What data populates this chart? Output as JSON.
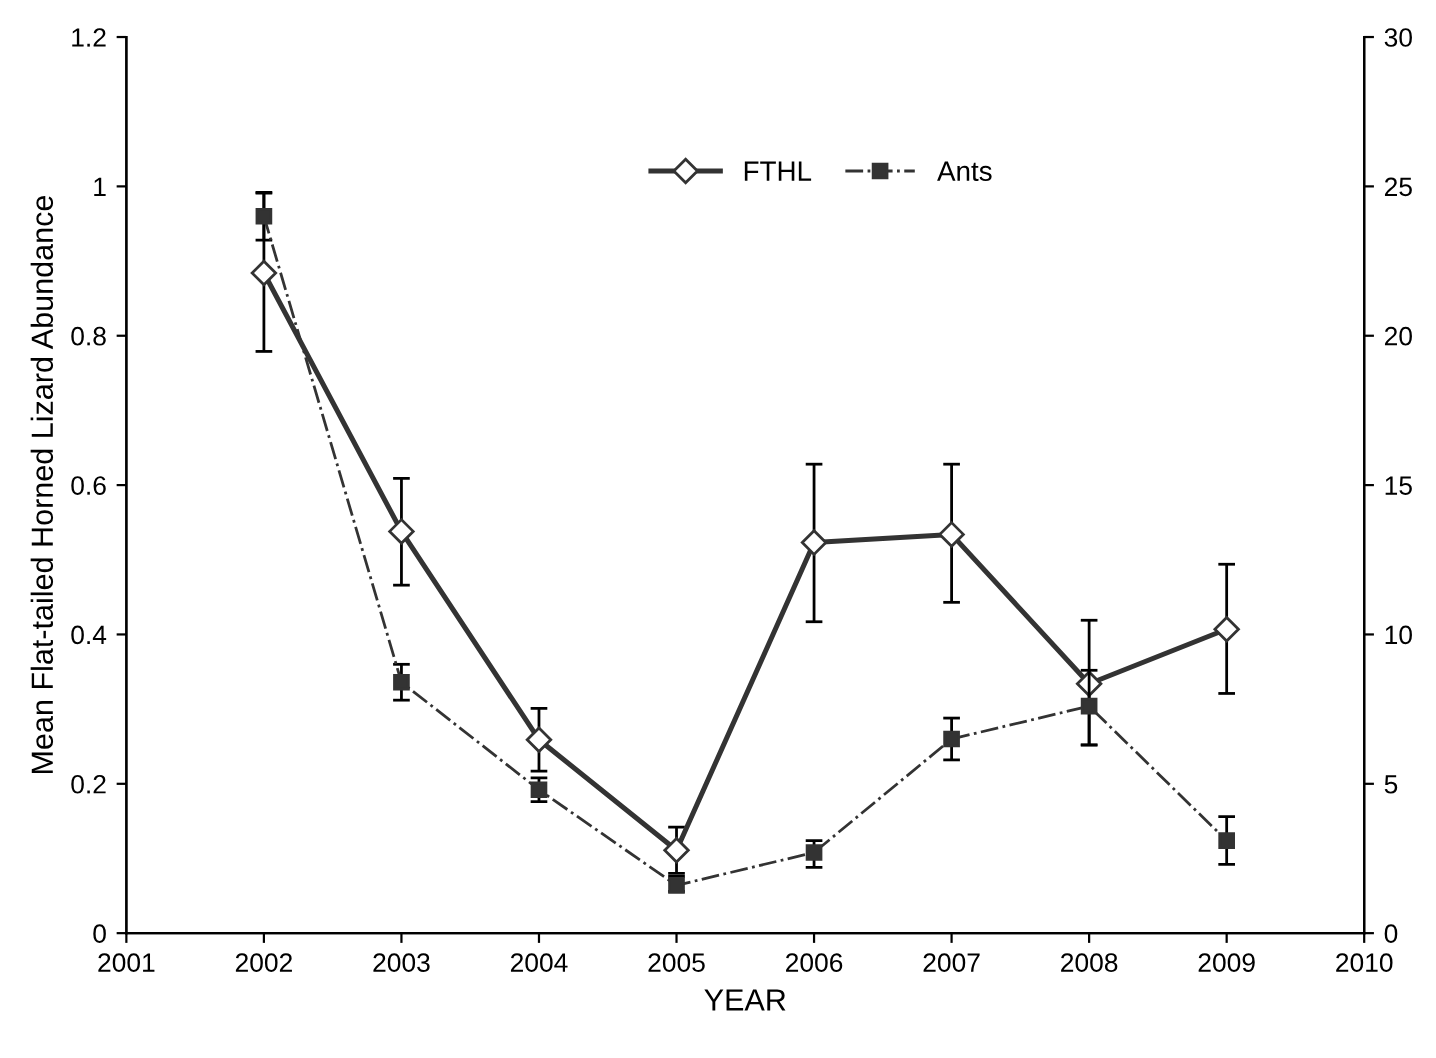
{
  "chart_data": {
    "type": "line",
    "xlabel": "YEAR",
    "ylabel": "Mean Flat-tailed Horned Lizard Abundance",
    "x": [
      2002,
      2003,
      2004,
      2005,
      2006,
      2007,
      2008,
      2009
    ],
    "series": [
      {
        "name": "FTHL",
        "color": "#333333",
        "marker": "diamond",
        "line_style": "solid",
        "values": [
          0.884,
          0.538,
          0.259,
          0.111,
          0.523,
          0.534,
          0.334,
          0.407
        ],
        "errors": [
          [
            0.779,
            0.991
          ],
          [
            0.466,
            0.609
          ],
          [
            0.217,
            0.301
          ],
          [
            0.08,
            0.142
          ],
          [
            0.417,
            0.628
          ],
          [
            0.443,
            0.628
          ],
          [
            0.252,
            0.419
          ],
          [
            0.321,
            0.494
          ]
        ]
      },
      {
        "name": "Ants",
        "color": "#333333",
        "marker": "square",
        "line_style": "dashdot",
        "axis": "y2",
        "values": [
          24.0,
          8.4,
          4.8,
          1.6,
          2.7,
          6.5,
          7.6,
          3.1
        ],
        "errors": [
          [
            23.2,
            24.8
          ],
          [
            7.8,
            9.0
          ],
          [
            4.4,
            5.2
          ],
          [
            1.4,
            1.9
          ],
          [
            2.2,
            3.1
          ],
          [
            5.8,
            7.2
          ],
          [
            6.3,
            8.8
          ],
          [
            2.3,
            3.9
          ]
        ]
      }
    ],
    "xlim": [
      2001,
      2010
    ],
    "xticks": [
      2001,
      2002,
      2003,
      2004,
      2005,
      2006,
      2007,
      2008,
      2009,
      2010
    ],
    "ylim": [
      0,
      1.2
    ],
    "yticks": [
      0,
      0.2,
      0.4,
      0.6,
      0.8,
      1,
      1.2
    ],
    "y2lim": [
      0,
      30
    ],
    "y2ticks": [
      0,
      5,
      10,
      15,
      20,
      25,
      30
    ],
    "grid": false,
    "legend": "top right"
  }
}
